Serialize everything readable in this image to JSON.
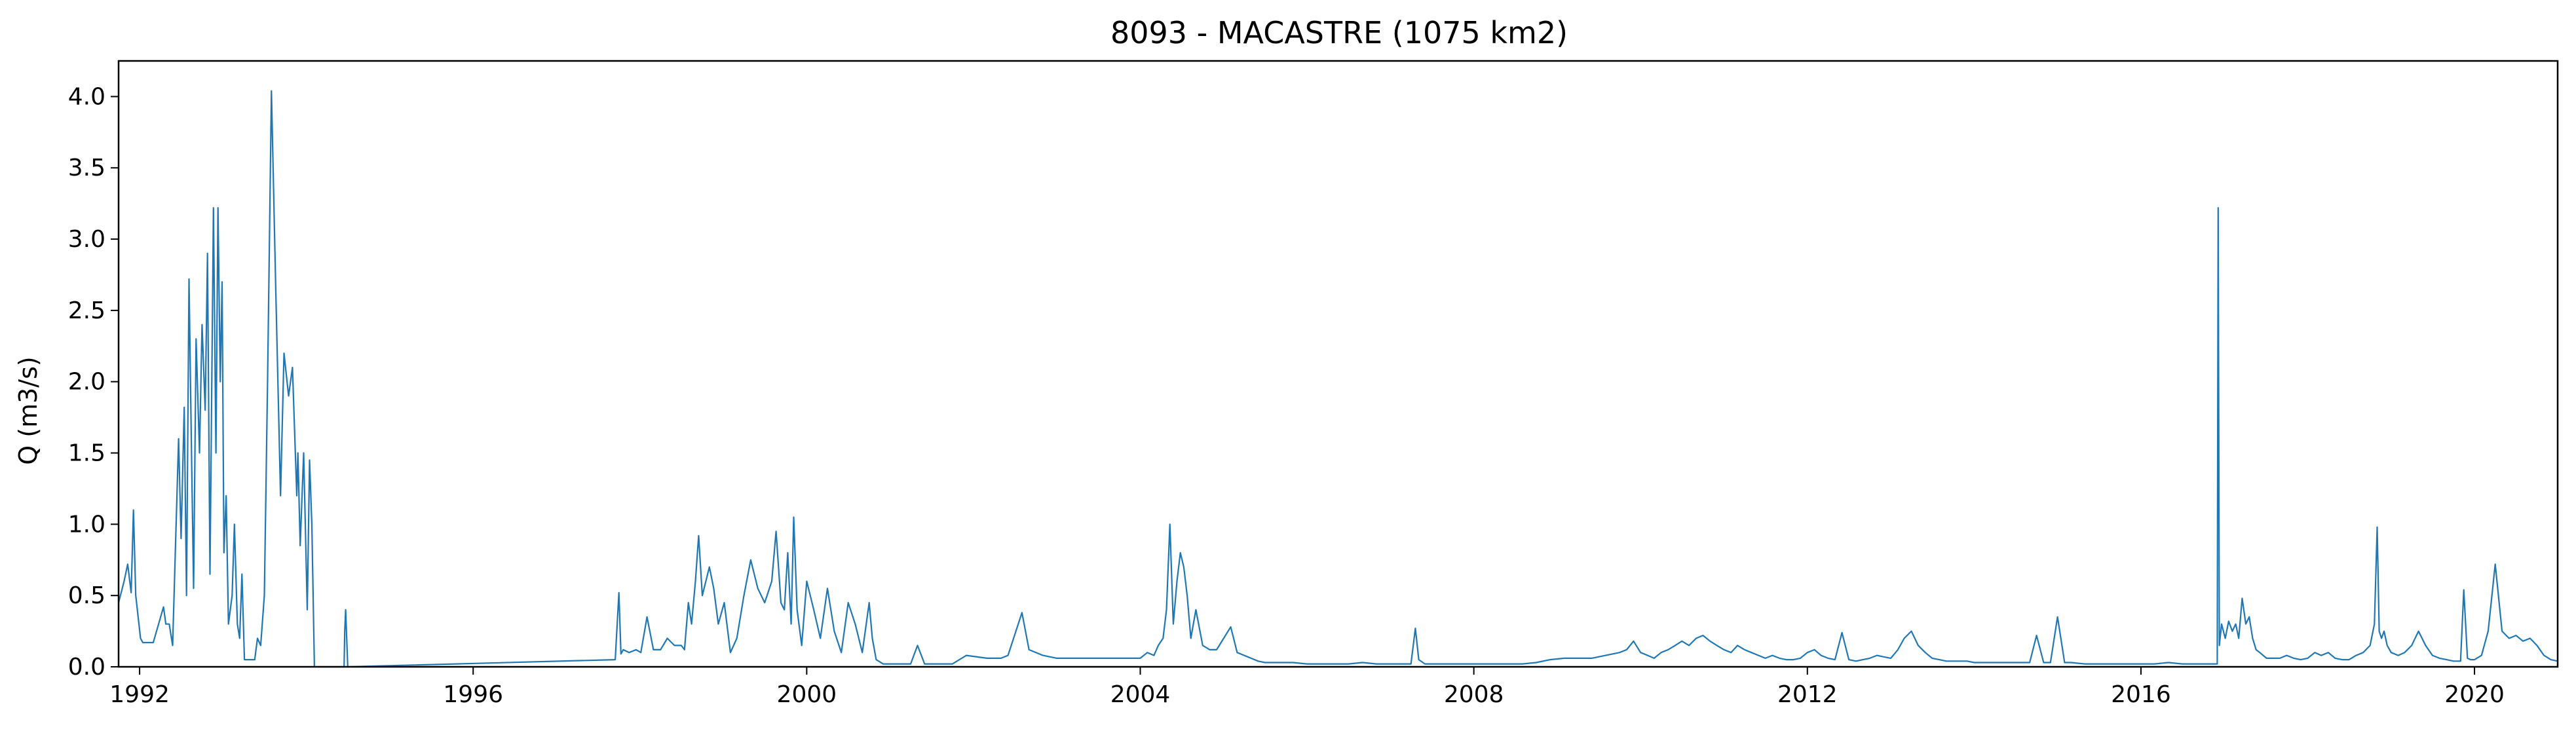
{
  "chart_data": {
    "type": "line",
    "title": "8093 - MACASTRE (1075 km2)",
    "xlabel": "",
    "ylabel": "Q (m3/s)",
    "xlim": [
      "1991-10-01",
      "2020-12-31"
    ],
    "ylim": [
      0,
      4.25
    ],
    "x_ticks": [
      "1992",
      "1996",
      "2000",
      "2004",
      "2008",
      "2012",
      "2016",
      "2020"
    ],
    "y_ticks": [
      "0.0",
      "0.5",
      "1.0",
      "1.5",
      "2.0",
      "2.5",
      "3.0",
      "3.5",
      "4.0"
    ],
    "grid": false,
    "legend": "none",
    "series": [
      {
        "color": "#1f77b4",
        "x": [
          "1991-10-01",
          "1991-10-25",
          "1991-11-10",
          "1991-11-25",
          "1991-12-05",
          "1991-12-15",
          "1992-01-05",
          "1992-01-15",
          "1992-02-01",
          "1992-03-01",
          "1992-04-15",
          "1992-04-25",
          "1992-05-10",
          "1992-05-25",
          "1992-06-20",
          "1992-07-01",
          "1992-07-15",
          "1992-07-25",
          "1992-08-05",
          "1992-08-15",
          "1992-08-25",
          "1992-09-05",
          "1992-09-20",
          "1992-10-01",
          "1992-10-15",
          "1992-10-25",
          "1992-11-05",
          "1992-11-20",
          "1992-12-01",
          "1992-12-10",
          "1992-12-20",
          "1992-12-28",
          "1993-01-05",
          "1993-01-15",
          "1993-01-25",
          "1993-02-10",
          "1993-02-20",
          "1993-03-05",
          "1993-03-15",
          "1993-03-25",
          "1993-04-05",
          "1993-04-20",
          "1993-05-05",
          "1993-05-20",
          "1993-06-01",
          "1993-06-15",
          "1993-07-01",
          "1993-07-15",
          "1993-08-01",
          "1993-08-20",
          "1993-09-10",
          "1993-09-25",
          "1993-10-15",
          "1993-11-01",
          "1993-11-20",
          "1993-11-25",
          "1993-12-05",
          "1993-12-20",
          "1994-01-05",
          "1994-01-15",
          "1994-01-25",
          "1994-02-05",
          "1994-02-15",
          "1994-02-25",
          "1994-03-05",
          "1994-03-10",
          "1994-03-15",
          "1994-03-20",
          "1994-03-25",
          "1994-04-01",
          "1994-06-15",
          "1994-06-18",
          "1994-06-22",
          "1994-07-01",
          "1997-09-15",
          "1997-10-01",
          "1997-10-10",
          "1997-10-20",
          "1997-11-15",
          "1997-12-15",
          "1998-01-05",
          "1998-02-01",
          "1998-03-01",
          "1998-04-01",
          "1998-05-01",
          "1998-06-01",
          "1998-07-01",
          "1998-07-15",
          "1998-08-01",
          "1998-08-15",
          "1998-09-01",
          "1998-09-15",
          "1998-10-01",
          "1998-11-01",
          "1998-11-20",
          "1998-12-10",
          "1999-01-05",
          "1999-02-01",
          "1999-03-01",
          "1999-04-01",
          "1999-05-01",
          "1999-06-01",
          "1999-07-01",
          "1999-08-01",
          "1999-08-20",
          "1999-09-10",
          "1999-09-25",
          "1999-10-10",
          "1999-10-25",
          "1999-11-05",
          "1999-11-20",
          "1999-12-10",
          "2000-01-01",
          "2000-02-01",
          "2000-03-01",
          "2000-04-01",
          "2000-05-01",
          "2000-06-01",
          "2000-07-01",
          "2000-08-01",
          "2000-09-01",
          "2000-10-01",
          "2000-10-15",
          "2000-11-01",
          "2000-12-01",
          "2001-01-01",
          "2001-04-01",
          "2001-05-01",
          "2001-06-01",
          "2001-07-01",
          "2001-08-01",
          "2001-09-01",
          "2001-10-01",
          "2001-12-01",
          "2002-03-01",
          "2002-05-01",
          "2002-06-01",
          "2002-08-01",
          "2002-09-01",
          "2002-11-01",
          "2003-01-01",
          "2003-03-01",
          "2003-05-01",
          "2003-07-01",
          "2003-09-01",
          "2003-11-01",
          "2004-01-01",
          "2004-02-01",
          "2004-03-01",
          "2004-03-20",
          "2004-04-10",
          "2004-04-25",
          "2004-05-10",
          "2004-05-25",
          "2004-06-10",
          "2004-06-25",
          "2004-07-10",
          "2004-07-25",
          "2004-08-10",
          "2004-09-01",
          "2004-10-01",
          "2004-11-01",
          "2004-12-01",
          "2005-01-01",
          "2005-02-01",
          "2005-03-01",
          "2005-04-01",
          "2005-05-01",
          "2005-06-01",
          "2005-07-01",
          "2005-09-01",
          "2005-11-01",
          "2006-01-01",
          "2006-03-01",
          "2006-05-01",
          "2006-07-01",
          "2006-09-01",
          "2006-11-01",
          "2007-01-01",
          "2007-03-01",
          "2007-04-01",
          "2007-04-20",
          "2007-05-05",
          "2007-06-01",
          "2007-08-01",
          "2007-10-01",
          "2007-12-01",
          "2008-02-01",
          "2008-04-01",
          "2008-06-01",
          "2008-08-01",
          "2008-10-01",
          "2008-12-01",
          "2009-02-01",
          "2009-04-01",
          "2009-06-01",
          "2009-08-01",
          "2009-10-01",
          "2009-11-01",
          "2009-12-01",
          "2010-01-01",
          "2010-02-01",
          "2010-03-01",
          "2010-04-01",
          "2010-05-01",
          "2010-06-01",
          "2010-07-01",
          "2010-08-01",
          "2010-09-01",
          "2010-10-01",
          "2010-11-01",
          "2010-12-01",
          "2011-01-01",
          "2011-02-01",
          "2011-03-01",
          "2011-04-01",
          "2011-05-01",
          "2011-06-01",
          "2011-07-01",
          "2011-08-01",
          "2011-09-01",
          "2011-10-01",
          "2011-11-01",
          "2011-12-01",
          "2012-01-01",
          "2012-02-01",
          "2012-03-01",
          "2012-04-01",
          "2012-05-01",
          "2012-06-01",
          "2012-07-01",
          "2012-08-01",
          "2012-09-01",
          "2012-10-01",
          "2012-11-01",
          "2012-12-01",
          "2013-01-01",
          "2013-02-01",
          "2013-03-01",
          "2013-04-01",
          "2013-05-01",
          "2013-06-01",
          "2013-07-01",
          "2013-08-01",
          "2013-09-01",
          "2013-10-01",
          "2013-11-01",
          "2013-12-01",
          "2014-01-01",
          "2014-02-01",
          "2014-03-01",
          "2014-05-01",
          "2014-07-01",
          "2014-09-01",
          "2014-10-01",
          "2014-11-01",
          "2014-12-01",
          "2015-01-01",
          "2015-02-01",
          "2015-03-01",
          "2015-05-01",
          "2015-07-01",
          "2015-09-01",
          "2015-11-01",
          "2016-01-01",
          "2016-03-01",
          "2016-05-01",
          "2016-07-01",
          "2016-09-01",
          "2016-11-01",
          "2016-12-01",
          "2016-12-05",
          "2016-12-10",
          "2016-12-20",
          "2017-01-05",
          "2017-01-20",
          "2017-02-05",
          "2017-02-20",
          "2017-03-05",
          "2017-03-20",
          "2017-04-05",
          "2017-04-20",
          "2017-05-05",
          "2017-05-20",
          "2017-06-05",
          "2017-06-20",
          "2017-07-05",
          "2017-08-01",
          "2017-09-01",
          "2017-10-01",
          "2017-11-01",
          "2017-12-01",
          "2018-01-01",
          "2018-02-01",
          "2018-03-01",
          "2018-04-01",
          "2018-05-01",
          "2018-06-01",
          "2018-07-01",
          "2018-08-01",
          "2018-09-01",
          "2018-10-01",
          "2018-10-20",
          "2018-11-01",
          "2018-11-10",
          "2018-11-20",
          "2018-12-01",
          "2018-12-15",
          "2019-01-01",
          "2019-02-01",
          "2019-03-01",
          "2019-04-01",
          "2019-05-01",
          "2019-06-01",
          "2019-07-01",
          "2019-08-01",
          "2019-09-01",
          "2019-10-01",
          "2019-11-01",
          "2019-11-15",
          "2019-12-01",
          "2019-12-15",
          "2020-01-01",
          "2020-02-01",
          "2020-03-01",
          "2020-04-01",
          "2020-05-01",
          "2020-06-01",
          "2020-07-01",
          "2020-08-01",
          "2020-09-01",
          "2020-10-01",
          "2020-11-01",
          "2020-12-01",
          "2020-12-31"
        ],
        "y": [
          0.45,
          0.6,
          0.72,
          0.52,
          1.1,
          0.5,
          0.2,
          0.17,
          0.17,
          0.17,
          0.42,
          0.3,
          0.3,
          0.15,
          1.6,
          0.9,
          1.82,
          0.5,
          2.72,
          1.6,
          0.55,
          2.3,
          1.5,
          2.4,
          1.8,
          2.9,
          0.65,
          3.22,
          1.5,
          3.22,
          2.0,
          2.7,
          0.8,
          1.2,
          0.3,
          0.5,
          1.0,
          0.3,
          0.2,
          0.65,
          0.05,
          0.05,
          0.05,
          0.05,
          0.2,
          0.15,
          0.5,
          2.0,
          4.04,
          2.65,
          1.2,
          2.2,
          1.9,
          2.1,
          1.2,
          1.5,
          0.85,
          1.5,
          0.4,
          1.45,
          1.0,
          0.0,
          0.0,
          0.0,
          0.0,
          0.0,
          0.0,
          0.0,
          0.0,
          0.0,
          0.0,
          0.25,
          0.4,
          0.0,
          0.05,
          0.52,
          0.09,
          0.12,
          0.1,
          0.12,
          0.1,
          0.35,
          0.12,
          0.12,
          0.2,
          0.15,
          0.15,
          0.12,
          0.45,
          0.3,
          0.6,
          0.92,
          0.5,
          0.7,
          0.55,
          0.3,
          0.45,
          0.1,
          0.2,
          0.5,
          0.75,
          0.55,
          0.45,
          0.6,
          0.95,
          0.45,
          0.4,
          0.8,
          0.3,
          1.05,
          0.4,
          0.15,
          0.6,
          0.4,
          0.2,
          0.55,
          0.25,
          0.1,
          0.45,
          0.3,
          0.1,
          0.45,
          0.2,
          0.05,
          0.02,
          0.02,
          0.02,
          0.15,
          0.02,
          0.02,
          0.02,
          0.02,
          0.02,
          0.08,
          0.06,
          0.06,
          0.08,
          0.38,
          0.12,
          0.08,
          0.06,
          0.06,
          0.06,
          0.06,
          0.06,
          0.06,
          0.06,
          0.1,
          0.08,
          0.15,
          0.2,
          0.4,
          1.0,
          0.3,
          0.6,
          0.8,
          0.7,
          0.5,
          0.2,
          0.4,
          0.15,
          0.12,
          0.12,
          0.2,
          0.28,
          0.1,
          0.08,
          0.06,
          0.04,
          0.03,
          0.03,
          0.03,
          0.02,
          0.02,
          0.02,
          0.02,
          0.03,
          0.02,
          0.02,
          0.02,
          0.02,
          0.27,
          0.05,
          0.02,
          0.02,
          0.02,
          0.02,
          0.02,
          0.02,
          0.02,
          0.02,
          0.03,
          0.05,
          0.06,
          0.06,
          0.06,
          0.08,
          0.1,
          0.12,
          0.18,
          0.1,
          0.08,
          0.06,
          0.1,
          0.12,
          0.15,
          0.18,
          0.15,
          0.2,
          0.22,
          0.18,
          0.15,
          0.12,
          0.1,
          0.15,
          0.12,
          0.1,
          0.08,
          0.06,
          0.08,
          0.06,
          0.05,
          0.05,
          0.06,
          0.1,
          0.12,
          0.08,
          0.06,
          0.05,
          0.24,
          0.05,
          0.04,
          0.05,
          0.06,
          0.08,
          0.07,
          0.06,
          0.12,
          0.2,
          0.25,
          0.15,
          0.1,
          0.06,
          0.05,
          0.04,
          0.04,
          0.04,
          0.04,
          0.03,
          0.03,
          0.03,
          0.03,
          0.03,
          0.03,
          0.22,
          0.03,
          0.03,
          0.35,
          0.03,
          0.03,
          0.02,
          0.02,
          0.02,
          0.02,
          0.02,
          0.02,
          0.03,
          0.02,
          0.02,
          0.02,
          0.02,
          3.22,
          0.15,
          0.3,
          0.2,
          0.32,
          0.25,
          0.3,
          0.2,
          0.48,
          0.3,
          0.35,
          0.2,
          0.12,
          0.1,
          0.08,
          0.06,
          0.06,
          0.06,
          0.08,
          0.06,
          0.05,
          0.06,
          0.1,
          0.08,
          0.1,
          0.06,
          0.05,
          0.05,
          0.08,
          0.1,
          0.15,
          0.3,
          0.98,
          0.25,
          0.2,
          0.25,
          0.15,
          0.1,
          0.08,
          0.1,
          0.15,
          0.25,
          0.15,
          0.08,
          0.06,
          0.05,
          0.04,
          0.04,
          0.54,
          0.06,
          0.05,
          0.05,
          0.08,
          0.25,
          0.72,
          0.25,
          0.2,
          0.22,
          0.18,
          0.2,
          0.15,
          0.08,
          0.05,
          0.04
        ]
      }
    ]
  }
}
